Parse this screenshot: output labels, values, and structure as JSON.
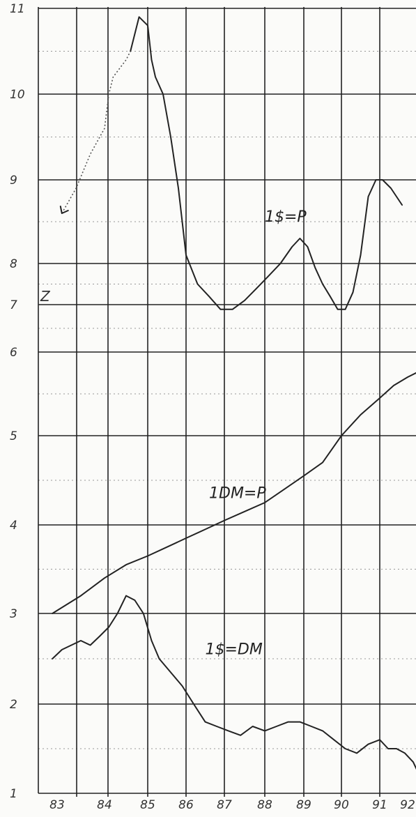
{
  "chart_data": {
    "type": "line",
    "title": "",
    "xlabel": "",
    "ylabel": "",
    "x_ticks": [
      "83",
      "84",
      "85",
      "86",
      "87",
      "88",
      "89",
      "90",
      "91",
      "92"
    ],
    "y_ticks": [
      "1",
      "2",
      "3",
      "4",
      "5",
      "6",
      "7",
      "8",
      "9",
      "10",
      "11"
    ],
    "xlim": [
      1982.9,
      1992.6
    ],
    "ylim": [
      1,
      11
    ],
    "grid": true,
    "margin_note": "Z",
    "series": [
      {
        "name": "1$=P",
        "style": "solid",
        "x": [
          1984.6,
          1984.8,
          1985.0,
          1985.1,
          1985.2,
          1985.4,
          1985.6,
          1985.8,
          1986.0,
          1986.3,
          1986.6,
          1986.9,
          1987.2,
          1987.5,
          1987.8,
          1988.1,
          1988.4,
          1988.7,
          1988.9,
          1989.1,
          1989.3,
          1989.5,
          1989.7,
          1989.9,
          1990.1,
          1990.3,
          1990.5,
          1990.7,
          1990.9,
          1991.1,
          1991.4,
          1991.8
        ],
        "y": [
          10.5,
          10.9,
          10.8,
          10.4,
          10.2,
          10.0,
          9.5,
          8.9,
          8.1,
          7.5,
          7.2,
          6.9,
          6.9,
          7.1,
          7.4,
          7.7,
          8.0,
          8.2,
          8.3,
          8.2,
          7.9,
          7.5,
          7.2,
          6.9,
          6.9,
          7.3,
          8.1,
          8.8,
          9.0,
          9.0,
          8.9,
          8.7
        ]
      },
      {
        "name": "",
        "style": "dotted",
        "x": [
          1983.1,
          1983.4,
          1983.7,
          1984.0,
          1984.1,
          1984.2,
          1984.35,
          1984.5,
          1984.6
        ],
        "y": [
          8.6,
          8.9,
          9.3,
          9.6,
          10.0,
          10.2,
          10.3,
          10.4,
          10.5
        ]
      },
      {
        "name": "1DM=P",
        "style": "solid",
        "x": [
          1982.9,
          1983.5,
          1984.0,
          1984.5,
          1985.0,
          1985.5,
          1986.0,
          1986.5,
          1987.0,
          1987.5,
          1988.0,
          1988.5,
          1989.0,
          1989.5,
          1990.0,
          1990.5,
          1991.0,
          1991.5,
          1992.0,
          1992.6
        ],
        "y": [
          3.0,
          3.2,
          3.4,
          3.55,
          3.65,
          3.75,
          3.85,
          3.95,
          4.05,
          4.15,
          4.25,
          4.4,
          4.55,
          4.7,
          5.0,
          5.25,
          5.45,
          5.6,
          5.7,
          5.8
        ]
      },
      {
        "name": "1$=DM",
        "style": "solid",
        "x": [
          1982.9,
          1983.1,
          1983.3,
          1983.5,
          1983.7,
          1983.9,
          1984.1,
          1984.3,
          1984.5,
          1984.7,
          1984.9,
          1985.1,
          1985.3,
          1985.6,
          1985.9,
          1986.2,
          1986.5,
          1986.8,
          1987.1,
          1987.4,
          1987.7,
          1988.0,
          1988.3,
          1988.6,
          1988.9,
          1989.2,
          1989.5,
          1989.8,
          1990.1,
          1990.4,
          1990.7,
          1991.0,
          1991.3,
          1991.6,
          1991.9,
          1992.2,
          1992.5
        ],
        "y": [
          2.5,
          2.6,
          2.65,
          2.7,
          2.65,
          2.75,
          2.85,
          3.0,
          3.2,
          3.15,
          3.0,
          2.7,
          2.5,
          2.35,
          2.2,
          2.0,
          1.8,
          1.75,
          1.7,
          1.65,
          1.75,
          1.7,
          1.75,
          1.8,
          1.8,
          1.75,
          1.7,
          1.6,
          1.5,
          1.45,
          1.55,
          1.6,
          1.5,
          1.5,
          1.45,
          1.35,
          1.15
        ]
      }
    ],
    "annotations": [
      {
        "text": "1$=P",
        "x": 1988.0,
        "y": 8.5
      },
      {
        "text": "1DM=P",
        "x": 1986.6,
        "y": 4.3
      },
      {
        "text": "1$=DM",
        "x": 1986.5,
        "y": 2.55
      }
    ]
  }
}
